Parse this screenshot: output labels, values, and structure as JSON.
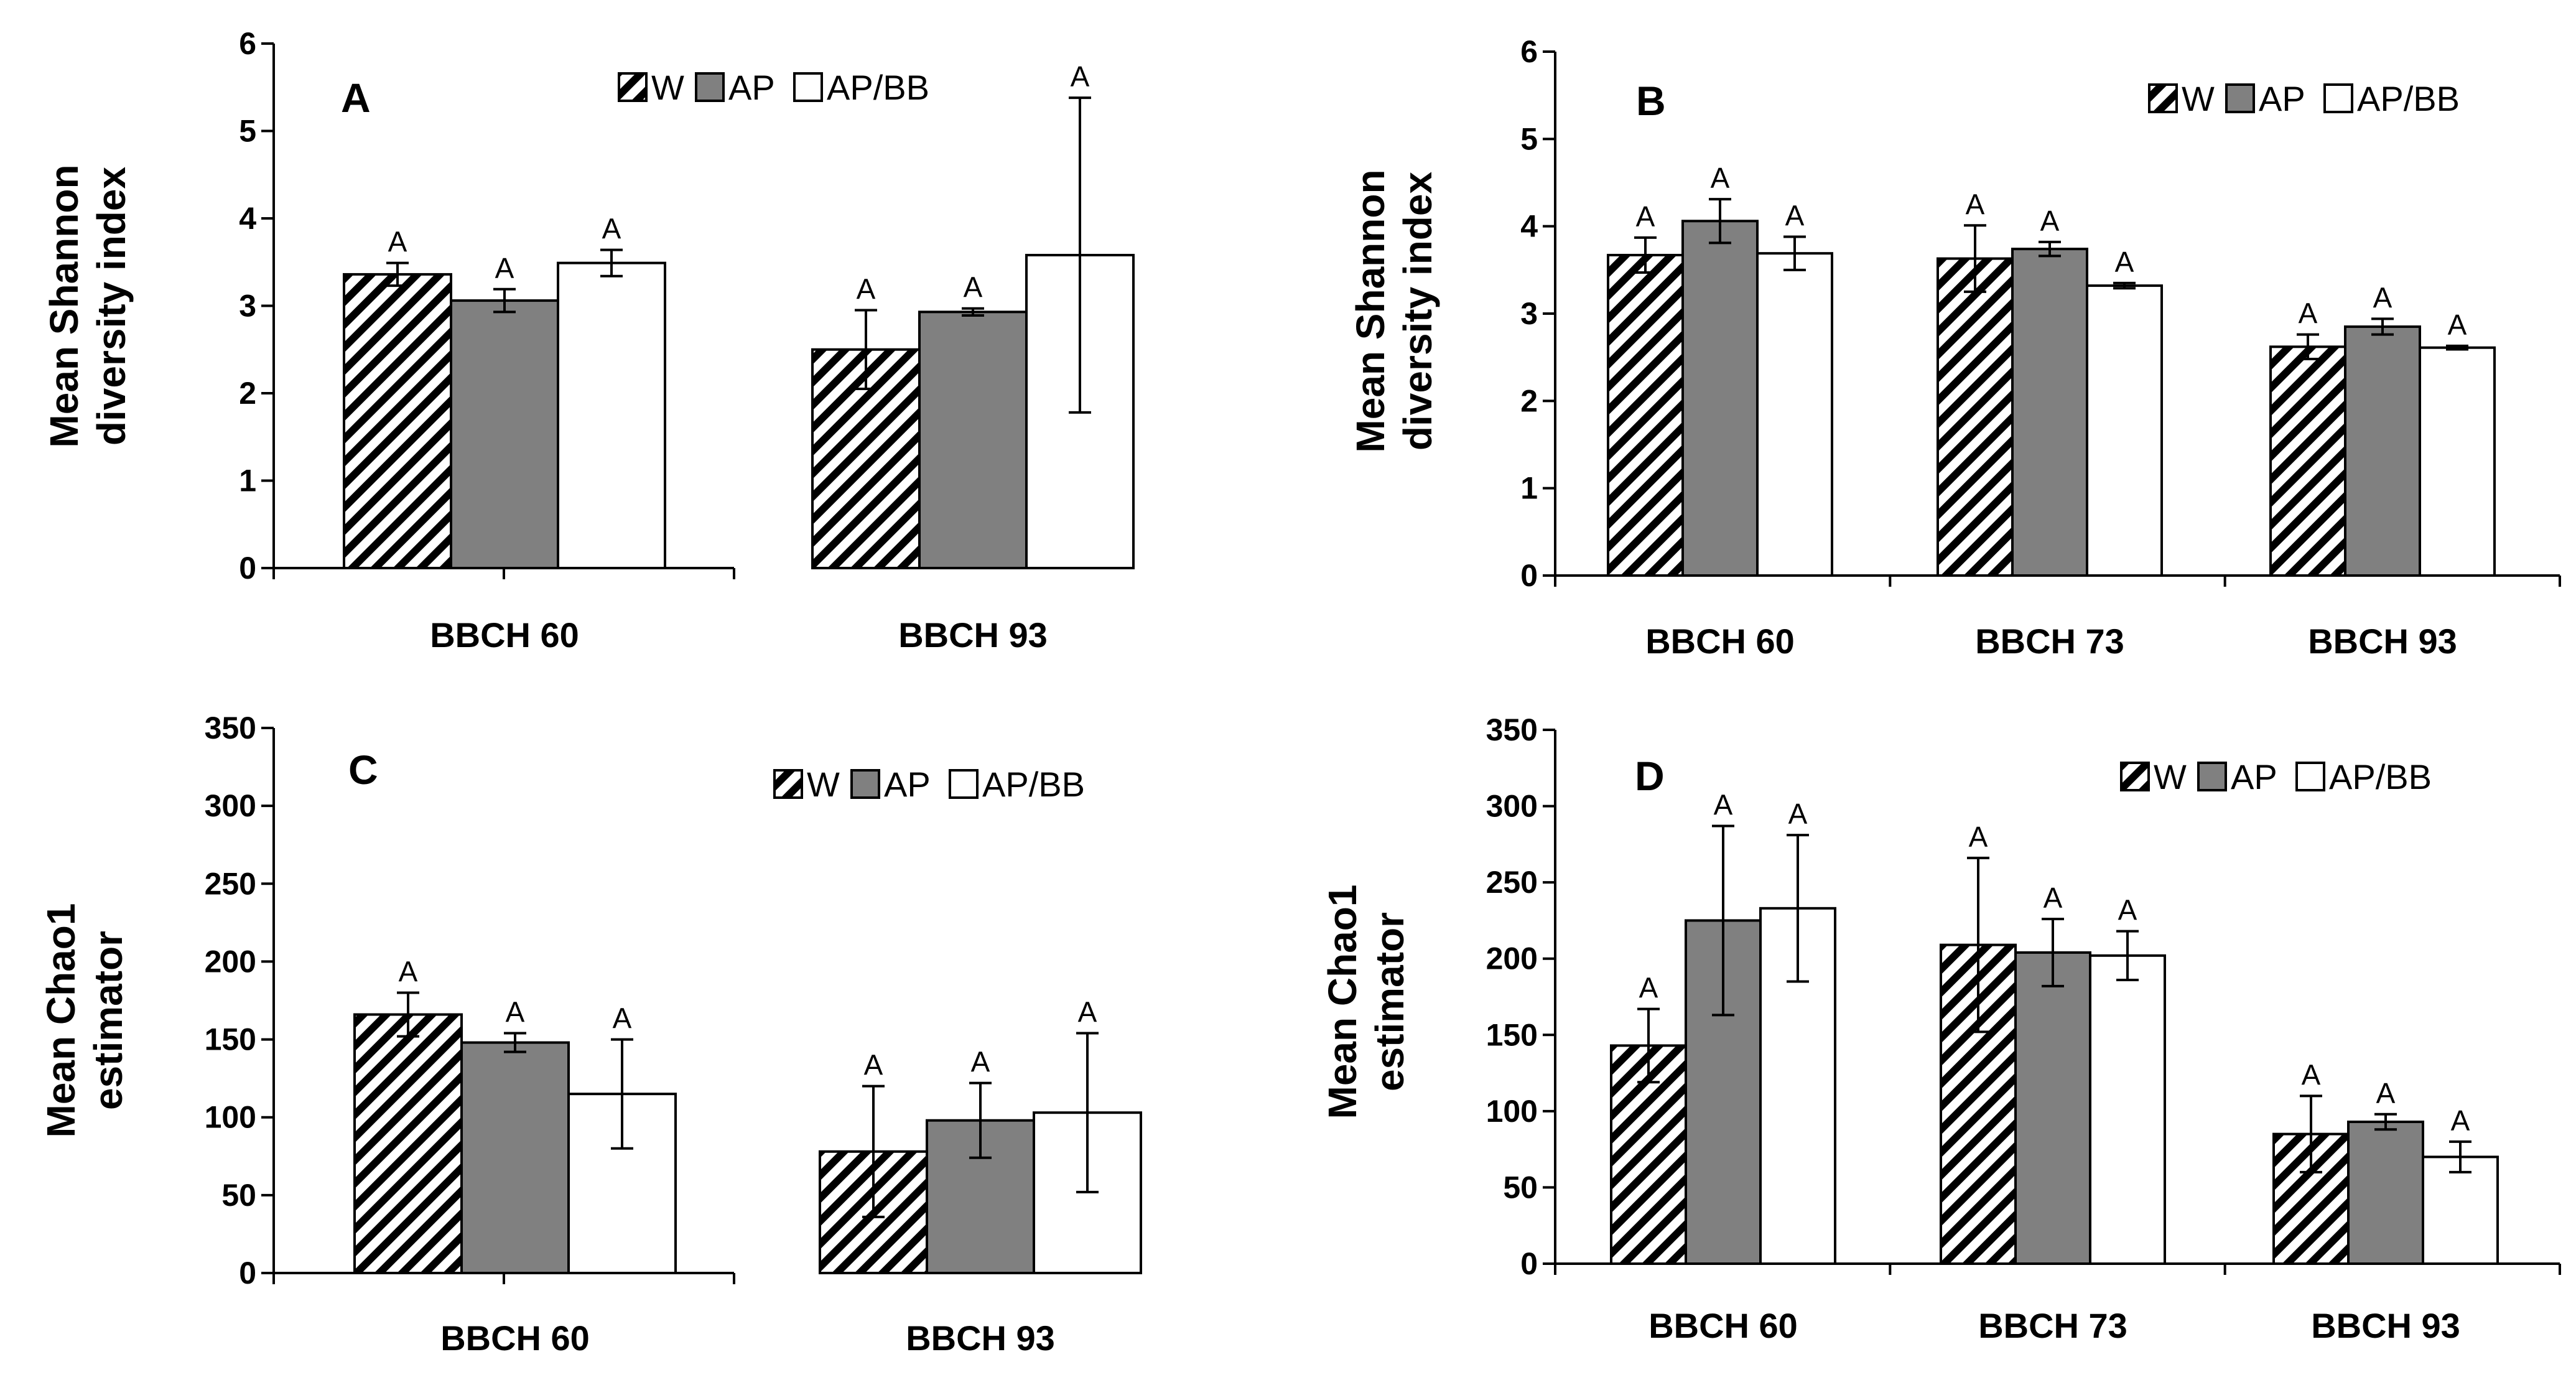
{
  "figure": {
    "series_names": [
      "W",
      "AP",
      "AP/BB"
    ],
    "colors": {
      "W": "#ffffff",
      "AP": "#808080",
      "AP/BB": "#ffffff",
      "axis": "#000000"
    }
  },
  "chart_data": [
    {
      "panel": "A",
      "type": "bar",
      "ylabel": [
        "Mean Shannon",
        "diversity index"
      ],
      "ylim": [
        0,
        6
      ],
      "yticks": [
        0,
        1,
        2,
        3,
        4,
        5,
        6
      ],
      "categories": [
        "BBCH 60",
        "BBCH 93"
      ],
      "legend_position": "top-right",
      "series": [
        {
          "name": "W",
          "values": [
            3.36,
            2.5
          ],
          "errors": [
            0.13,
            0.45
          ],
          "labels": [
            "A",
            "A"
          ]
        },
        {
          "name": "AP",
          "values": [
            3.06,
            2.93
          ],
          "errors": [
            0.13,
            0.04
          ],
          "labels": [
            "A",
            "A"
          ]
        },
        {
          "name": "AP/BB",
          "values": [
            3.49,
            3.58
          ],
          "errors": [
            0.15,
            1.8
          ],
          "labels": [
            "A",
            "A"
          ]
        }
      ]
    },
    {
      "panel": "B",
      "type": "bar",
      "ylabel": [
        "Mean Shannon",
        "diversity index"
      ],
      "ylim": [
        0,
        6
      ],
      "yticks": [
        0,
        1,
        2,
        3,
        4,
        5,
        6
      ],
      "categories": [
        "BBCH 60",
        "BBCH 73",
        "BBCH 93"
      ],
      "legend_position": "top-right",
      "series": [
        {
          "name": "W",
          "values": [
            3.67,
            3.63,
            2.62
          ],
          "errors": [
            0.2,
            0.38,
            0.14
          ],
          "labels": [
            "A",
            "A",
            "A"
          ]
        },
        {
          "name": "AP",
          "values": [
            4.06,
            3.74,
            2.85
          ],
          "errors": [
            0.25,
            0.08,
            0.09
          ],
          "labels": [
            "A",
            "A",
            "A"
          ]
        },
        {
          "name": "AP/BB",
          "values": [
            3.69,
            3.32,
            2.61
          ],
          "errors": [
            0.19,
            0.03,
            0.02
          ],
          "labels": [
            "A",
            "A",
            "A"
          ]
        }
      ]
    },
    {
      "panel": "C",
      "type": "bar",
      "ylabel": [
        "Mean Chao1",
        "estimator"
      ],
      "ylim": [
        0,
        350
      ],
      "yticks": [
        0,
        50,
        100,
        150,
        200,
        250,
        300,
        350
      ],
      "categories": [
        "BBCH 60",
        "BBCH 93"
      ],
      "legend_position": "top-right",
      "series": [
        {
          "name": "W",
          "values": [
            166,
            78
          ],
          "errors": [
            14,
            42
          ],
          "labels": [
            "A",
            "A"
          ]
        },
        {
          "name": "AP",
          "values": [
            148,
            98
          ],
          "errors": [
            6,
            24
          ],
          "labels": [
            "A",
            "A"
          ]
        },
        {
          "name": "AP/BB",
          "values": [
            115,
            103
          ],
          "errors": [
            35,
            51
          ],
          "labels": [
            "A",
            "A"
          ]
        }
      ]
    },
    {
      "panel": "D",
      "type": "bar",
      "ylabel": [
        "Mean Chao1",
        "estimator"
      ],
      "ylim": [
        0,
        350
      ],
      "yticks": [
        0,
        50,
        100,
        150,
        200,
        250,
        300,
        350
      ],
      "categories": [
        "BBCH 60",
        "BBCH 73",
        "BBCH 93"
      ],
      "legend_position": "top-right",
      "series": [
        {
          "name": "W",
          "values": [
            143,
            209,
            85
          ],
          "errors": [
            24,
            57,
            25
          ],
          "labels": [
            "A",
            "A",
            "A"
          ]
        },
        {
          "name": "AP",
          "values": [
            225,
            204,
            93
          ],
          "errors": [
            62,
            22,
            5
          ],
          "labels": [
            "A",
            "A",
            "A"
          ]
        },
        {
          "name": "AP/BB",
          "values": [
            233,
            202,
            70
          ],
          "errors": [
            48,
            16,
            10
          ],
          "labels": [
            "A",
            "A",
            "A"
          ]
        }
      ]
    }
  ]
}
